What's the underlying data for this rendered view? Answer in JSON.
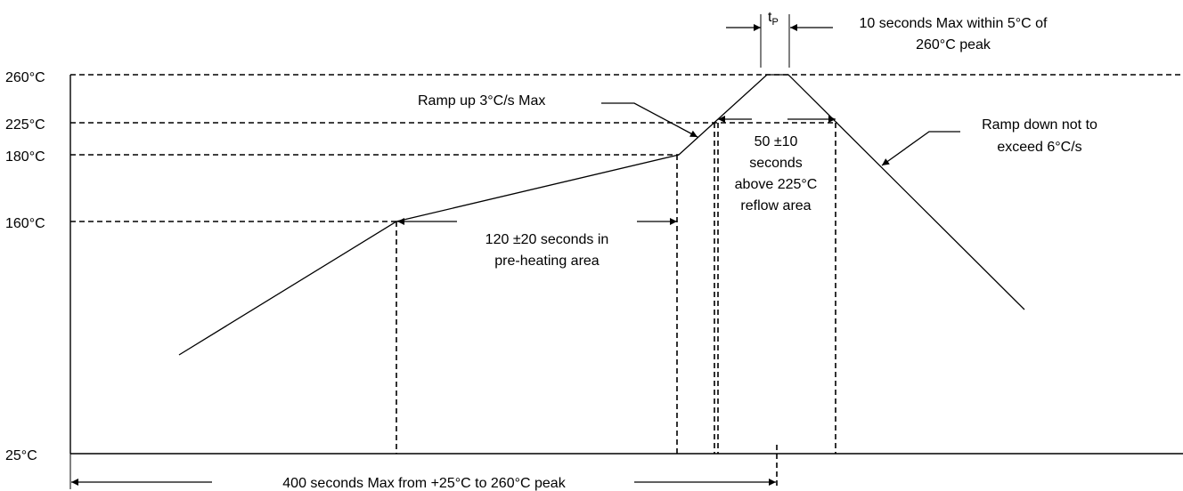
{
  "y_axis_labels": {
    "t260": "260°C",
    "t225": "225°C",
    "t180": "180°C",
    "t160": "160°C",
    "t25": "25°C"
  },
  "annotations": {
    "tp_main": "t",
    "tp_sub": "P",
    "peak_window_line1": "10 seconds Max within 5°C of",
    "peak_window_line2": "260°C peak",
    "ramp_up": "Ramp up 3°C/s Max",
    "ramp_down_line1": "Ramp down not to",
    "ramp_down_line2": "exceed 6°C/s",
    "reflow_line1": "50 ±10",
    "reflow_line2": "seconds",
    "reflow_line3": "above 225°C",
    "reflow_line4": "reflow area",
    "preheat_line1": "120 ±20 seconds in",
    "preheat_line2": "pre-heating area",
    "total_time": "400 seconds Max from +25°C to 260°C peak"
  },
  "profile": {
    "temperatures_c": [
      25,
      160,
      180,
      225,
      260
    ],
    "stages": [
      "pre-heating",
      "reflow",
      "peak",
      "ramp-down"
    ]
  }
}
